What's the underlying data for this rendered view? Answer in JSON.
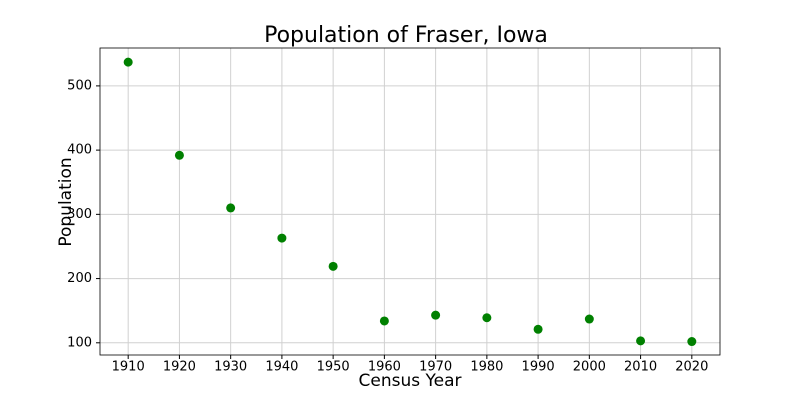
{
  "chart_data": {
    "type": "scatter",
    "title": "Population of Fraser, Iowa",
    "x_label": "Census Year",
    "y_label": "Population",
    "x": [
      1910,
      1920,
      1930,
      1940,
      1950,
      1960,
      1970,
      1980,
      1990,
      2000,
      2010,
      2020
    ],
    "values": [
      537,
      392,
      310,
      263,
      219,
      134,
      143,
      139,
      121,
      137,
      103,
      102
    ],
    "color": "#008000",
    "xlim": [
      1904.5,
      2025.5
    ],
    "xticks": [
      1910,
      1920,
      1930,
      1940,
      1950,
      1960,
      1970,
      1980,
      1990,
      2000,
      2010,
      2020
    ],
    "ylim": [
      81,
      559
    ],
    "yticks": [
      100,
      200,
      300,
      400,
      500
    ],
    "grid": true
  }
}
